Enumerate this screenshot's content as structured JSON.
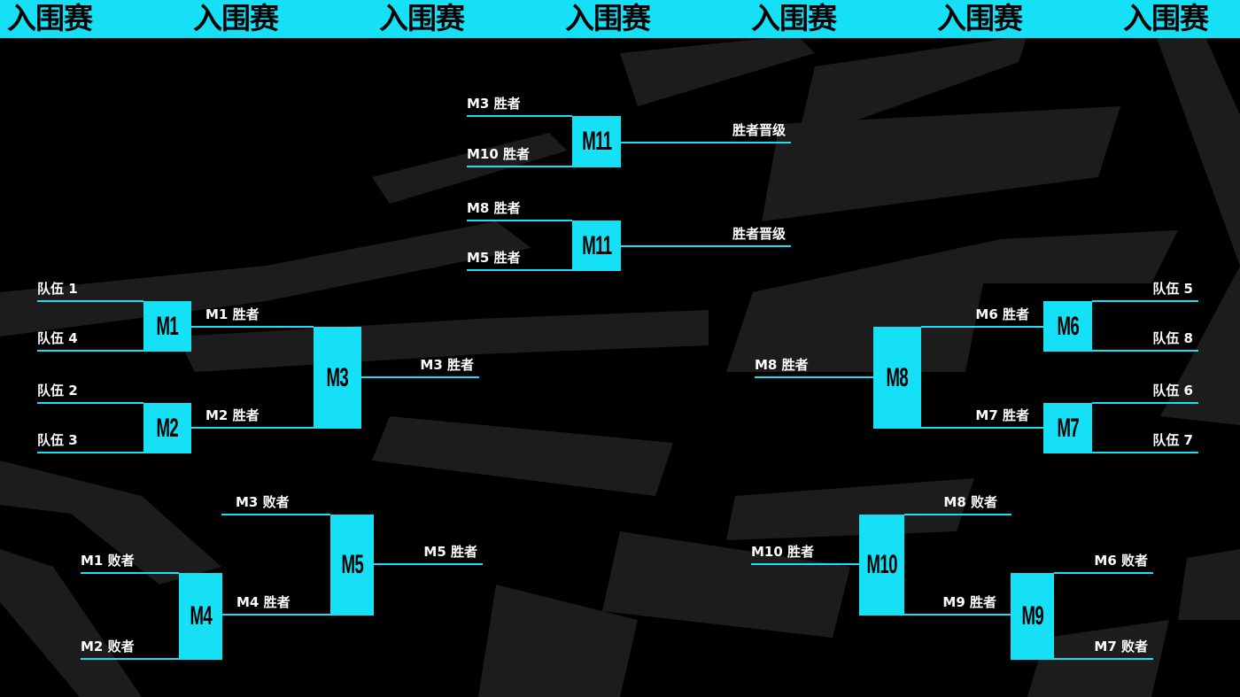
{
  "banner": {
    "items": [
      "入围赛",
      "入围赛",
      "入围赛",
      "入围赛",
      "入围赛",
      "入围赛",
      "入围赛"
    ]
  },
  "colors": {
    "accent": "#16e0f5",
    "background": "#000000",
    "stripes": "#1c1c1c",
    "text": "#ffffff"
  },
  "matches": {
    "m11a": "M11",
    "m11b": "M11",
    "m1": "M1",
    "m2": "M2",
    "m3": "M3",
    "m4": "M4",
    "m5": "M5",
    "m6": "M6",
    "m7": "M7",
    "m8": "M8",
    "m9": "M9",
    "m10": "M10"
  },
  "labels": {
    "m11a_top": "M3 胜者",
    "m11a_bottom": "M10 胜者",
    "m11a_out": "胜者晋级",
    "m11b_top": "M8 胜者",
    "m11b_bottom": "M5 胜者",
    "m11b_out": "胜者晋级",
    "team1": "队伍 1",
    "team4": "队伍 4",
    "team2": "队伍 2",
    "team3": "队伍 3",
    "m1_out": "M1 胜者",
    "m2_out": "M2 胜者",
    "m3_out": "M3 胜者",
    "m4_top": "M1 败者",
    "m4_bottom": "M2 败者",
    "m4_out": "M4 胜者",
    "m5_top": "M3 败者",
    "m5_out": "M5 胜者",
    "team5": "队伍 5",
    "team8": "队伍 8",
    "team6": "队伍 6",
    "team7": "队伍 7",
    "m6_out": "M6 胜者",
    "m7_out": "M7 胜者",
    "m8_out": "M8 胜者",
    "m9_top": "M6 败者",
    "m9_bottom": "M7 败者",
    "m9_out": "M9 胜者",
    "m10_top": "M8 败者",
    "m10_out": "M10 胜者"
  }
}
